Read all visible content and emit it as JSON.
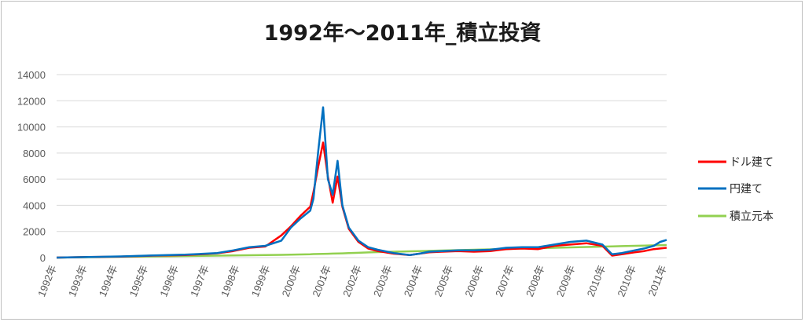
{
  "chart_data": {
    "type": "line",
    "title": "1992年～2011年_積立投資",
    "ylim": [
      0,
      14000
    ],
    "yticks": [
      "0",
      "2000",
      "4000",
      "6000",
      "8000",
      "10000",
      "12000",
      "14000"
    ],
    "xlabels": [
      "1992年",
      "1993年",
      "1994年",
      "1995年",
      "1996年",
      "1997年",
      "1998年",
      "1999年",
      "2000年",
      "2001年",
      "2002年",
      "2003年",
      "2004年",
      "2005年",
      "2006年",
      "2007年",
      "2008年",
      "2009年",
      "2010年",
      "2010年",
      "2011年"
    ],
    "grid": true,
    "legend_position": "right",
    "x": [
      1992.0,
      1993.0,
      1994.0,
      1995.0,
      1996.0,
      1996.5,
      1997.0,
      1997.5,
      1998.0,
      1998.5,
      1999.0,
      1999.3,
      1999.6,
      1999.9,
      2000.0,
      2000.15,
      2000.3,
      2000.45,
      2000.6,
      2000.75,
      2000.9,
      2001.1,
      2001.4,
      2001.7,
      2002.0,
      2002.5,
      2003.0,
      2003.3,
      2003.6,
      2004.0,
      2004.5,
      2005.0,
      2005.5,
      2006.0,
      2006.5,
      2007.0,
      2007.5,
      2008.0,
      2008.5,
      2009.0,
      2009.3,
      2009.6,
      2010.0,
      2010.3,
      2010.6,
      2010.8,
      2011.0
    ],
    "series": [
      {
        "name": "ドル建て",
        "color": "#ff0000",
        "values": [
          0,
          40,
          80,
          150,
          200,
          260,
          330,
          500,
          750,
          850,
          1700,
          2400,
          3200,
          3900,
          5000,
          7000,
          8800,
          6200,
          4200,
          6200,
          3900,
          2200,
          1200,
          700,
          500,
          300,
          200,
          300,
          400,
          450,
          500,
          450,
          500,
          650,
          700,
          650,
          900,
          1000,
          1100,
          900,
          150,
          250,
          400,
          500,
          650,
          700,
          750
        ]
      },
      {
        "name": "円建て",
        "color": "#0070c0",
        "values": [
          0,
          40,
          90,
          160,
          220,
          280,
          350,
          550,
          800,
          900,
          1300,
          2300,
          3000,
          3600,
          4500,
          8200,
          11500,
          6000,
          4800,
          7400,
          4000,
          2300,
          1300,
          800,
          600,
          350,
          200,
          300,
          450,
          500,
          550,
          550,
          600,
          750,
          800,
          800,
          1000,
          1200,
          1300,
          1000,
          250,
          350,
          550,
          700,
          900,
          1200,
          1350
        ]
      },
      {
        "name": "積立元本",
        "color": "#92d050",
        "values": [
          0,
          30,
          60,
          90,
          120,
          135,
          150,
          165,
          180,
          195,
          210,
          225,
          240,
          255,
          270,
          279,
          288,
          297,
          306,
          315,
          324,
          342,
          369,
          396,
          420,
          450,
          480,
          498,
          516,
          540,
          570,
          600,
          630,
          660,
          690,
          720,
          750,
          780,
          810,
          840,
          858,
          876,
          900,
          918,
          936,
          948,
          960
        ]
      }
    ]
  }
}
